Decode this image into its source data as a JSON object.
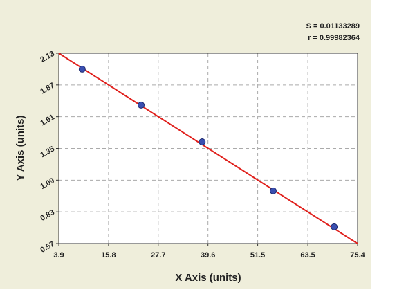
{
  "chart_data": {
    "type": "scatter",
    "x_label": "X Axis (units)",
    "y_label": "Y Axis (units)",
    "annotations": [
      "S = 0.01133289",
      "r = 0.99982364"
    ],
    "series": [
      {
        "x": [
          9.5,
          23.6,
          38.2,
          55.2,
          69.8
        ],
        "values": [
          2.0,
          1.705,
          1.404,
          1.002,
          0.707
        ],
        "color": "#3a4fb0"
      }
    ],
    "fit": {
      "x": [
        3.9,
        75.4
      ],
      "values": [
        2.13,
        0.57
      ],
      "color": "#e0201c"
    },
    "xlim": [
      3.9,
      75.4
    ],
    "xticks": [
      3.9,
      15.8,
      27.7,
      39.6,
      51.5,
      63.5,
      75.4
    ],
    "ylim": [
      0.57,
      2.13
    ],
    "yticks": [
      0.57,
      0.83,
      1.09,
      1.35,
      1.61,
      1.87,
      2.13
    ],
    "grid": true
  }
}
